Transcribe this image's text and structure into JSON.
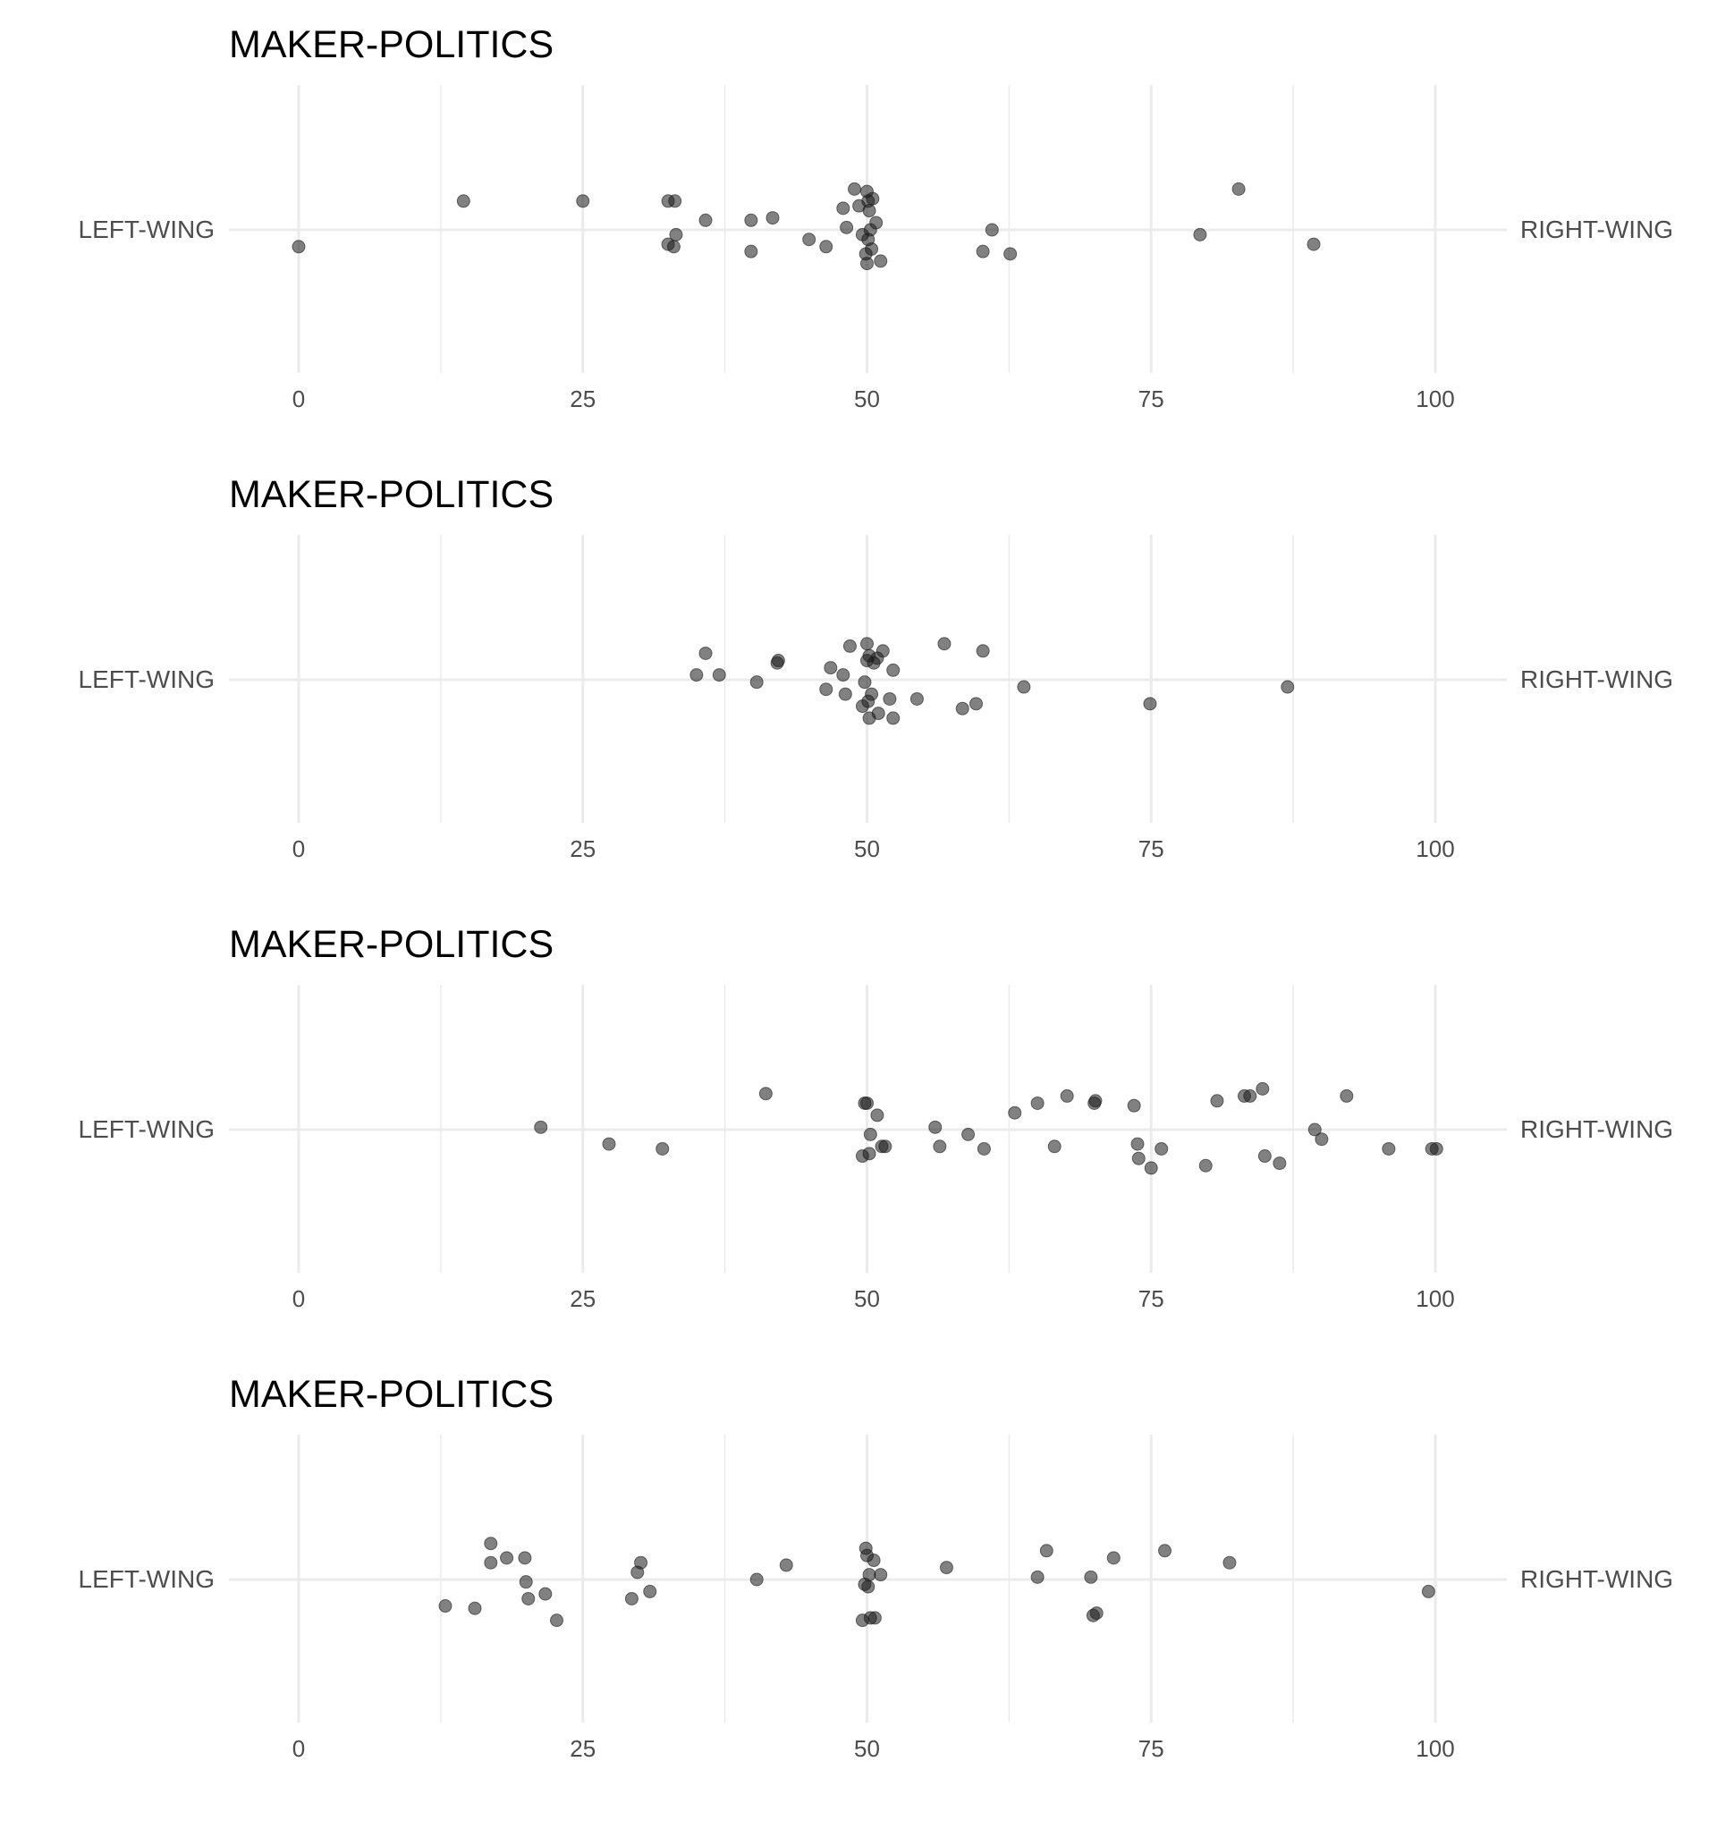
{
  "colors": {
    "point": "#1a1a1a",
    "grid": "#ebebeb",
    "text": "#4d4d4d"
  },
  "chart_data": [
    {
      "type": "scatter",
      "title": "MAKER-POLITICS",
      "left_label": "LEFT-WING",
      "right_label": "RIGHT-WING",
      "xlim": [
        -3,
        106
      ],
      "x_ticks": [
        0,
        25,
        50,
        75,
        100
      ],
      "grid": true,
      "points": [
        {
          "x": 0,
          "y": -0.07
        },
        {
          "x": 14.5,
          "y": 0.12
        },
        {
          "x": 25,
          "y": 0.12
        },
        {
          "x": 32.5,
          "y": 0.12
        },
        {
          "x": 33.1,
          "y": 0.12
        },
        {
          "x": 32.5,
          "y": -0.06
        },
        {
          "x": 33.0,
          "y": -0.07
        },
        {
          "x": 33.2,
          "y": -0.02
        },
        {
          "x": 35.8,
          "y": 0.04
        },
        {
          "x": 39.8,
          "y": 0.04
        },
        {
          "x": 39.8,
          "y": -0.09
        },
        {
          "x": 41.7,
          "y": 0.05
        },
        {
          "x": 44.9,
          "y": -0.04
        },
        {
          "x": 46.4,
          "y": -0.07
        },
        {
          "x": 47.9,
          "y": 0.09
        },
        {
          "x": 48.2,
          "y": 0.01
        },
        {
          "x": 48.9,
          "y": 0.17
        },
        {
          "x": 49.3,
          "y": 0.1
        },
        {
          "x": 49.6,
          "y": -0.02
        },
        {
          "x": 49.9,
          "y": -0.1
        },
        {
          "x": 50.0,
          "y": 0.16
        },
        {
          "x": 50.1,
          "y": 0.12
        },
        {
          "x": 50.1,
          "y": -0.04
        },
        {
          "x": 50.0,
          "y": -0.14
        },
        {
          "x": 50.2,
          "y": 0.08
        },
        {
          "x": 50.3,
          "y": 0.0
        },
        {
          "x": 50.4,
          "y": -0.08
        },
        {
          "x": 50.5,
          "y": 0.13
        },
        {
          "x": 50.8,
          "y": 0.03
        },
        {
          "x": 51.2,
          "y": -0.13
        },
        {
          "x": 60.2,
          "y": -0.09
        },
        {
          "x": 61.0,
          "y": 0.0
        },
        {
          "x": 62.6,
          "y": -0.1
        },
        {
          "x": 79.3,
          "y": -0.02
        },
        {
          "x": 82.7,
          "y": 0.17
        },
        {
          "x": 89.3,
          "y": -0.06
        }
      ]
    },
    {
      "type": "scatter",
      "title": "MAKER-POLITICS",
      "left_label": "LEFT-WING",
      "right_label": "RIGHT-WING",
      "xlim": [
        -3,
        106
      ],
      "x_ticks": [
        0,
        25,
        50,
        75,
        100
      ],
      "grid": true,
      "points": [
        {
          "x": 35.0,
          "y": 0.02
        },
        {
          "x": 35.8,
          "y": 0.11
        },
        {
          "x": 37.0,
          "y": 0.02
        },
        {
          "x": 40.3,
          "y": -0.01
        },
        {
          "x": 42.1,
          "y": 0.07
        },
        {
          "x": 42.2,
          "y": 0.08
        },
        {
          "x": 46.4,
          "y": -0.04
        },
        {
          "x": 46.8,
          "y": 0.05
        },
        {
          "x": 47.9,
          "y": 0.02
        },
        {
          "x": 48.1,
          "y": -0.06
        },
        {
          "x": 48.5,
          "y": 0.14
        },
        {
          "x": 49.6,
          "y": -0.11
        },
        {
          "x": 49.8,
          "y": -0.01
        },
        {
          "x": 50.0,
          "y": 0.15
        },
        {
          "x": 50.0,
          "y": 0.08
        },
        {
          "x": 50.1,
          "y": -0.09
        },
        {
          "x": 50.2,
          "y": 0.1
        },
        {
          "x": 50.2,
          "y": -0.16
        },
        {
          "x": 50.4,
          "y": -0.06
        },
        {
          "x": 50.6,
          "y": 0.07
        },
        {
          "x": 50.9,
          "y": 0.09
        },
        {
          "x": 51.0,
          "y": -0.14
        },
        {
          "x": 51.4,
          "y": 0.12
        },
        {
          "x": 52.0,
          "y": -0.08
        },
        {
          "x": 52.3,
          "y": 0.04
        },
        {
          "x": 52.3,
          "y": -0.16
        },
        {
          "x": 54.4,
          "y": -0.08
        },
        {
          "x": 56.8,
          "y": 0.15
        },
        {
          "x": 58.4,
          "y": -0.12
        },
        {
          "x": 59.6,
          "y": -0.1
        },
        {
          "x": 60.2,
          "y": 0.12
        },
        {
          "x": 63.8,
          "y": -0.03
        },
        {
          "x": 74.9,
          "y": -0.1
        },
        {
          "x": 87.0,
          "y": -0.03
        }
      ]
    },
    {
      "type": "scatter",
      "title": "MAKER-POLITICS",
      "left_label": "LEFT-WING",
      "right_label": "RIGHT-WING",
      "xlim": [
        -3,
        106
      ],
      "x_ticks": [
        0,
        25,
        50,
        75,
        100
      ],
      "grid": true,
      "points": [
        {
          "x": 21.3,
          "y": 0.01
        },
        {
          "x": 27.3,
          "y": -0.06
        },
        {
          "x": 32.0,
          "y": -0.08
        },
        {
          "x": 41.1,
          "y": 0.15
        },
        {
          "x": 49.8,
          "y": 0.11
        },
        {
          "x": 49.6,
          "y": -0.11
        },
        {
          "x": 50.0,
          "y": 0.11
        },
        {
          "x": 50.2,
          "y": -0.1
        },
        {
          "x": 50.3,
          "y": -0.02
        },
        {
          "x": 50.9,
          "y": 0.06
        },
        {
          "x": 51.3,
          "y": -0.07
        },
        {
          "x": 51.6,
          "y": -0.07
        },
        {
          "x": 56.0,
          "y": 0.01
        },
        {
          "x": 56.4,
          "y": -0.07
        },
        {
          "x": 58.9,
          "y": -0.02
        },
        {
          "x": 60.3,
          "y": -0.08
        },
        {
          "x": 63.0,
          "y": 0.07
        },
        {
          "x": 65.0,
          "y": 0.11
        },
        {
          "x": 66.5,
          "y": -0.07
        },
        {
          "x": 67.6,
          "y": 0.14
        },
        {
          "x": 70.0,
          "y": 0.11
        },
        {
          "x": 70.1,
          "y": 0.12
        },
        {
          "x": 73.5,
          "y": 0.1
        },
        {
          "x": 73.8,
          "y": -0.06
        },
        {
          "x": 73.9,
          "y": -0.12
        },
        {
          "x": 75.0,
          "y": -0.16
        },
        {
          "x": 75.9,
          "y": -0.08
        },
        {
          "x": 79.8,
          "y": -0.15
        },
        {
          "x": 80.8,
          "y": 0.12
        },
        {
          "x": 83.2,
          "y": 0.14
        },
        {
          "x": 83.7,
          "y": 0.14
        },
        {
          "x": 84.8,
          "y": 0.17
        },
        {
          "x": 85.0,
          "y": -0.11
        },
        {
          "x": 86.3,
          "y": -0.14
        },
        {
          "x": 89.4,
          "y": 0.0
        },
        {
          "x": 90.0,
          "y": -0.04
        },
        {
          "x": 92.2,
          "y": 0.14
        },
        {
          "x": 95.9,
          "y": -0.08
        },
        {
          "x": 99.7,
          "y": -0.08
        },
        {
          "x": 100.1,
          "y": -0.08
        }
      ]
    },
    {
      "type": "scatter",
      "title": "MAKER-POLITICS",
      "left_label": "LEFT-WING",
      "right_label": "RIGHT-WING",
      "xlim": [
        -3,
        106
      ],
      "x_ticks": [
        0,
        25,
        50,
        75,
        100
      ],
      "grid": true,
      "points": [
        {
          "x": 12.9,
          "y": -0.11
        },
        {
          "x": 15.5,
          "y": -0.12
        },
        {
          "x": 16.9,
          "y": 0.15
        },
        {
          "x": 16.9,
          "y": 0.07
        },
        {
          "x": 18.3,
          "y": 0.09
        },
        {
          "x": 19.9,
          "y": 0.09
        },
        {
          "x": 20.0,
          "y": -0.01
        },
        {
          "x": 20.2,
          "y": -0.08
        },
        {
          "x": 21.7,
          "y": -0.06
        },
        {
          "x": 22.7,
          "y": -0.17
        },
        {
          "x": 29.3,
          "y": -0.08
        },
        {
          "x": 29.8,
          "y": 0.03
        },
        {
          "x": 30.1,
          "y": 0.07
        },
        {
          "x": 30.9,
          "y": -0.05
        },
        {
          "x": 40.3,
          "y": -0.0
        },
        {
          "x": 42.9,
          "y": 0.06
        },
        {
          "x": 49.6,
          "y": -0.17
        },
        {
          "x": 49.9,
          "y": 0.13
        },
        {
          "x": 49.8,
          "y": -0.02
        },
        {
          "x": 50.0,
          "y": 0.1
        },
        {
          "x": 50.1,
          "y": -0.03
        },
        {
          "x": 50.2,
          "y": 0.02
        },
        {
          "x": 50.3,
          "y": -0.16
        },
        {
          "x": 50.6,
          "y": 0.08
        },
        {
          "x": 50.7,
          "y": -0.16
        },
        {
          "x": 51.2,
          "y": 0.02
        },
        {
          "x": 57.0,
          "y": 0.05
        },
        {
          "x": 65.0,
          "y": 0.01
        },
        {
          "x": 65.8,
          "y": 0.12
        },
        {
          "x": 69.7,
          "y": 0.01
        },
        {
          "x": 69.9,
          "y": -0.15
        },
        {
          "x": 70.2,
          "y": -0.14
        },
        {
          "x": 71.7,
          "y": 0.09
        },
        {
          "x": 76.2,
          "y": 0.12
        },
        {
          "x": 81.9,
          "y": 0.07
        },
        {
          "x": 99.4,
          "y": -0.05
        }
      ]
    }
  ]
}
